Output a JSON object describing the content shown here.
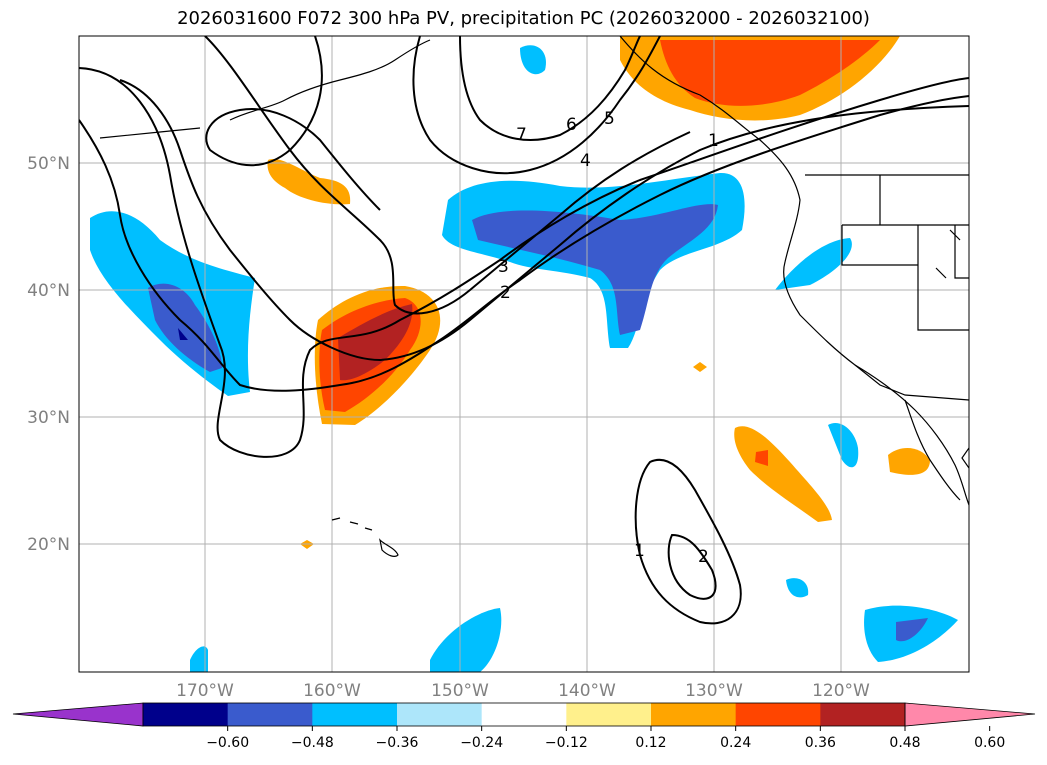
{
  "title": "2026031600 F072 300 hPa PV, precipitation PC (2026032000 - 2026032100)",
  "lat_labels": [
    "50°N",
    "40°N",
    "30°N",
    "20°N"
  ],
  "lon_labels": [
    "170°W",
    "160°W",
    "150°W",
    "140°W",
    "130°W",
    "120°W"
  ],
  "colorbar": {
    "ticks": [
      "−0.60",
      "−0.48",
      "−0.36",
      "−0.24",
      "−0.12",
      "0.12",
      "0.24",
      "0.36",
      "0.48",
      "0.60"
    ],
    "colors": [
      "#9933cc",
      "#00008b",
      "#3a5bcd",
      "#00bfff",
      "#ade6fa",
      "#ffffff",
      "#fff08c",
      "#ffa500",
      "#ff4500",
      "#b22222",
      "#ff88aa"
    ]
  },
  "contour_labels": [
    "7",
    "6",
    "5",
    "4",
    "1",
    "3",
    "2",
    "1",
    "2"
  ]
}
